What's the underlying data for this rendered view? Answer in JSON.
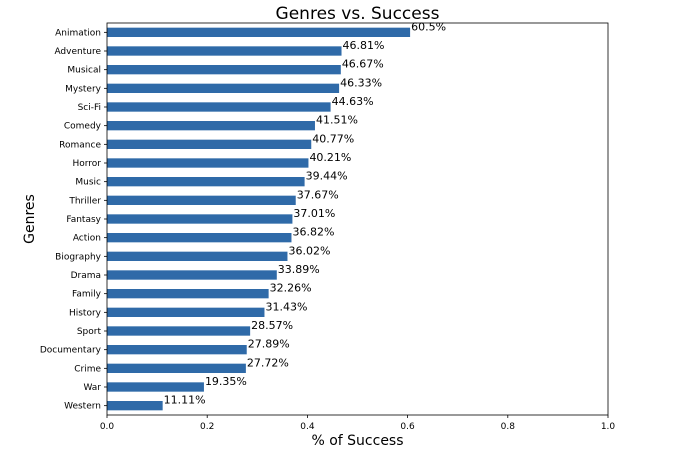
{
  "chart_data": {
    "type": "bar",
    "orientation": "horizontal",
    "title": "Genres vs. Success",
    "xlabel": "% of Success",
    "ylabel": "Genres",
    "xlim": [
      0,
      1
    ],
    "xticks": [
      "0.0",
      "0.2",
      "0.4",
      "0.6",
      "0.8",
      "1.0"
    ],
    "grid": false,
    "bar_color": "#2f6aa8",
    "categories": [
      "Animation",
      "Adventure",
      "Musical",
      "Mystery",
      "Sci-Fi",
      "Comedy",
      "Romance",
      "Horror",
      "Music",
      "Thriller",
      "Fantasy",
      "Action",
      "Biography",
      "Drama",
      "Family",
      "History",
      "Sport",
      "Documentary",
      "Crime",
      "War",
      "Western"
    ],
    "values": [
      0.605,
      0.4681,
      0.4667,
      0.4633,
      0.4463,
      0.4151,
      0.4077,
      0.4021,
      0.3944,
      0.3767,
      0.3701,
      0.3682,
      0.3602,
      0.3389,
      0.3226,
      0.3143,
      0.2857,
      0.2789,
      0.2772,
      0.1935,
      0.1111
    ],
    "data_labels": [
      "60.5%",
      "46.81%",
      "46.67%",
      "46.33%",
      "44.63%",
      "41.51%",
      "40.77%",
      "40.21%",
      "39.44%",
      "37.67%",
      "37.01%",
      "36.82%",
      "36.02%",
      "33.89%",
      "32.26%",
      "31.43%",
      "28.57%",
      "27.89%",
      "27.72%",
      "19.35%",
      "11.11%"
    ]
  }
}
